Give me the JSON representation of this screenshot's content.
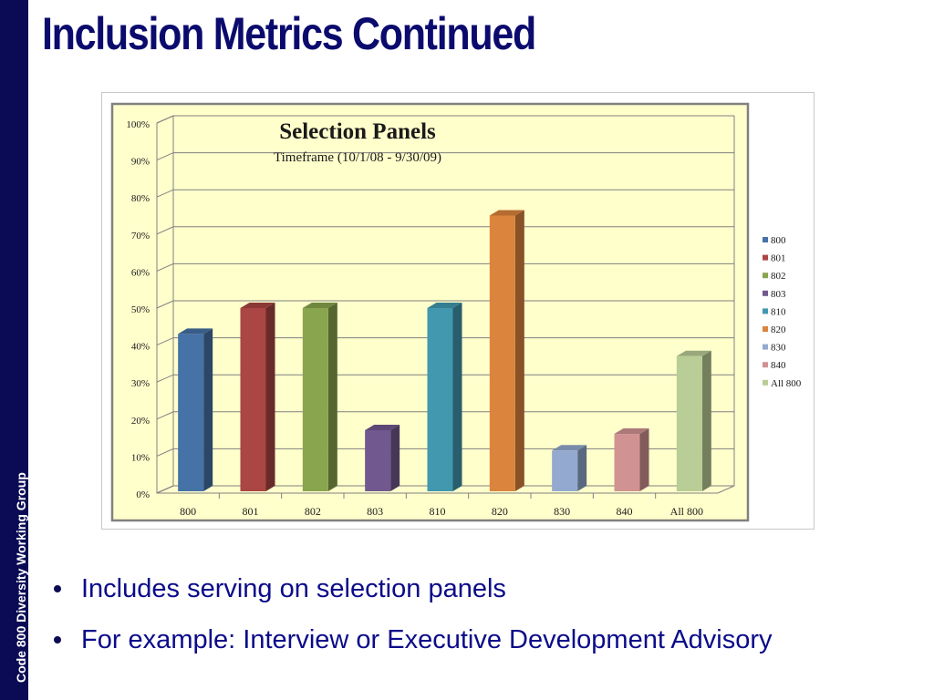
{
  "sidebar": {
    "label": "Code 800 Diversity Working Group"
  },
  "slide": {
    "title": "Inclusion Metrics Continued"
  },
  "bullets": [
    "Includes serving on selection panels",
    "For example: Interview or Executive Development Advisory"
  ],
  "chart_data": {
    "type": "bar",
    "title": "Selection Panels",
    "subtitle": "Timeframe (10/1/08 - 9/30/09)",
    "categories": [
      "800",
      "801",
      "802",
      "803",
      "810",
      "820",
      "830",
      "840",
      "All 800"
    ],
    "values": [
      43,
      50,
      50,
      17,
      50,
      75,
      11.5,
      16,
      37
    ],
    "colors": [
      "#4572a7",
      "#aa4643",
      "#89a54e",
      "#71588f",
      "#4198af",
      "#db843d",
      "#93a9cf",
      "#d19392",
      "#b9cd96"
    ],
    "ylim": [
      0,
      100
    ],
    "yticks": [
      "0%",
      "10%",
      "20%",
      "30%",
      "40%",
      "50%",
      "60%",
      "70%",
      "80%",
      "90%",
      "100%"
    ],
    "legend": [
      "800",
      "801",
      "802",
      "803",
      "810",
      "820",
      "830",
      "840",
      "All 800"
    ],
    "legend_position": "right",
    "grid": true,
    "plot_background": "#ffffcc"
  }
}
